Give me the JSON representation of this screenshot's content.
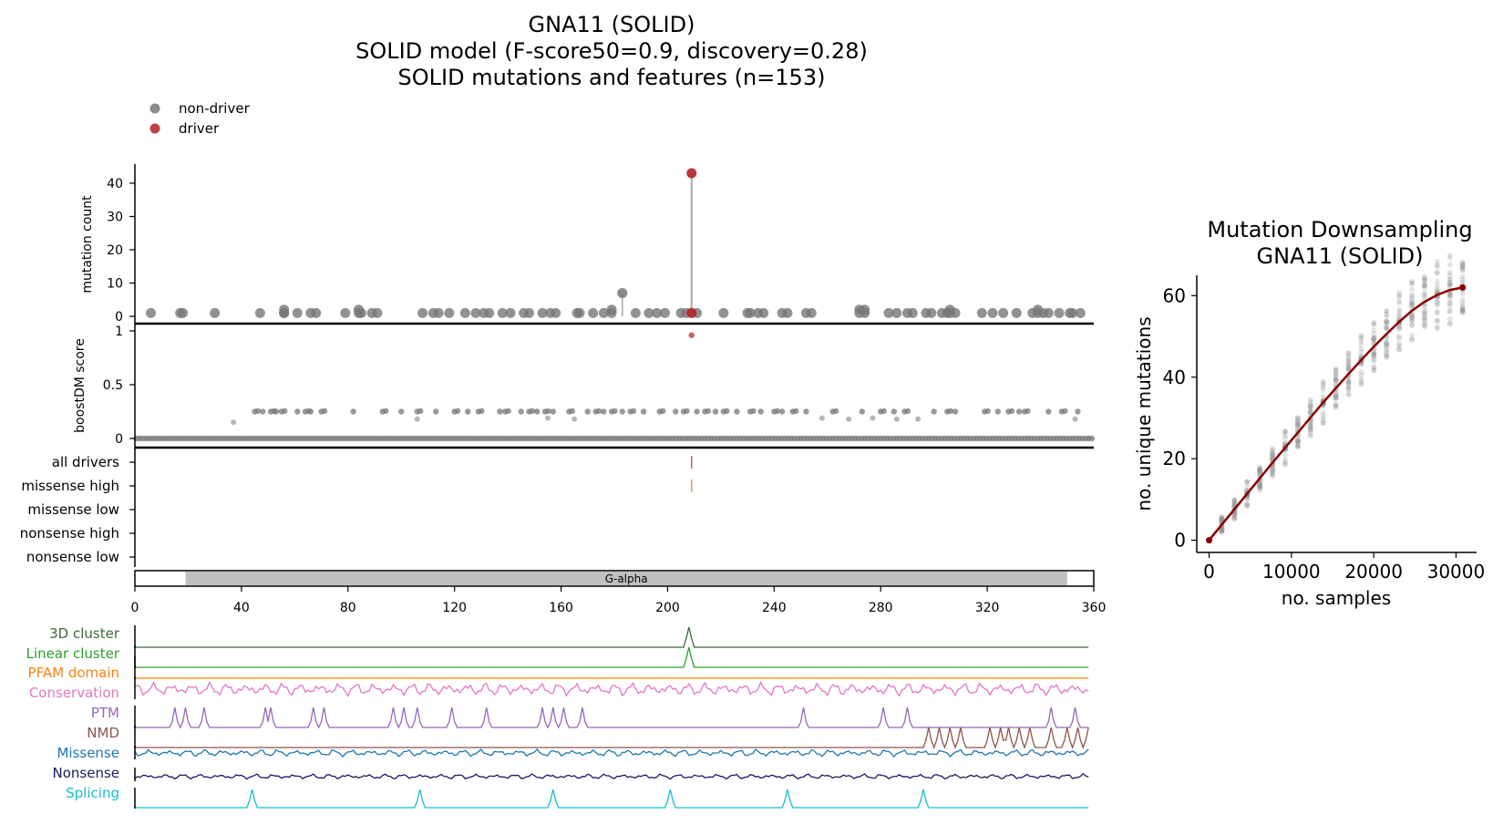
{
  "title": {
    "line1": "GNA11 (SOLID)",
    "line2": "SOLID model (F-score50=0.9, discovery=0.28)",
    "line3": "SOLID mutations and features (n=153)"
  },
  "legend": {
    "placement": "top-left",
    "items": [
      {
        "label": "non-driver",
        "color": "#777777"
      },
      {
        "label": "driver",
        "color": "#b22222"
      }
    ]
  },
  "colors": {
    "nondriver": "#777777",
    "driver": "#b22222",
    "stem": "#a8a8a8",
    "domain_fill": "#c0c0c0"
  },
  "chart_data": [
    {
      "type": "scatter",
      "panel": "mutation-count",
      "ylabel": "mutation count",
      "ylim": [
        0,
        45
      ],
      "yticks": [
        "0",
        "10",
        "20",
        "30",
        "40"
      ],
      "xlim": [
        0,
        360
      ],
      "nondriver_positions_count1": [
        6,
        17,
        18,
        30,
        47,
        56,
        61,
        66,
        68,
        79,
        85,
        89,
        91,
        108,
        112,
        114,
        118,
        124,
        128,
        131,
        133,
        138,
        141,
        146,
        148,
        153,
        156,
        158,
        166,
        167,
        172,
        176,
        188,
        193,
        196,
        199,
        205,
        207,
        211,
        221,
        230,
        231,
        234,
        236,
        243,
        245,
        252,
        254,
        283,
        286,
        290,
        292,
        297,
        299,
        303,
        305,
        308,
        318,
        322,
        326,
        331,
        337,
        341,
        343,
        347,
        351,
        352,
        355
      ],
      "nondriver_positions_count2": [
        56,
        84,
        179,
        272,
        274,
        306,
        339
      ],
      "nondriver_stems": [
        {
          "position": 183,
          "count": 7
        }
      ],
      "driver_points": [
        {
          "position": 209,
          "count": 43
        },
        {
          "position": 209,
          "count": 1
        }
      ]
    },
    {
      "type": "scatter",
      "panel": "boostdm-score",
      "ylabel": "boostDM score",
      "ylim": [
        -0.02,
        1.05
      ],
      "yticks": [
        "0",
        "0.5",
        "1"
      ],
      "driver_score": {
        "position": 209,
        "score": 0.96
      },
      "band_points": [
        45,
        48,
        51,
        53,
        55,
        61,
        64,
        66,
        70,
        82,
        93,
        100,
        106,
        113,
        120,
        125,
        129,
        137,
        139,
        145,
        148,
        151,
        154,
        157,
        163,
        170,
        173,
        176,
        179,
        183,
        186,
        191,
        197,
        203,
        206,
        211,
        214,
        218,
        221,
        226,
        231,
        235,
        240,
        243,
        247,
        252,
        262,
        273,
        280,
        285,
        289,
        300,
        305,
        308,
        319,
        324,
        328,
        332,
        334,
        343,
        348,
        354
      ],
      "mid_points": [
        {
          "position": 37,
          "score": 0.15
        },
        {
          "position": 106,
          "score": 0.18
        },
        {
          "position": 155,
          "score": 0.19
        },
        {
          "position": 165,
          "score": 0.18
        },
        {
          "position": 258,
          "score": 0.19
        },
        {
          "position": 268,
          "score": 0.18
        },
        {
          "position": 277,
          "score": 0.19
        },
        {
          "position": 286,
          "score": 0.18
        },
        {
          "position": 294,
          "score": 0.18
        },
        {
          "position": 353,
          "score": 0.18
        }
      ]
    },
    {
      "type": "table",
      "panel": "driver-tracks",
      "rows": [
        "all drivers",
        "missense high",
        "missense low",
        "nonsense high",
        "nonsense low"
      ],
      "marks": [
        {
          "row": "all drivers",
          "position": 209,
          "color": "#c06070"
        },
        {
          "row": "missense high",
          "position": 209,
          "color": "#d4a060"
        }
      ]
    },
    {
      "type": "table",
      "panel": "domain-bar",
      "xlim": [
        0,
        360
      ],
      "xticks": [
        "0",
        "40",
        "80",
        "120",
        "160",
        "200",
        "240",
        "280",
        "320",
        "360"
      ],
      "domains": [
        {
          "label": "G-alpha",
          "start": 19,
          "end": 350
        }
      ]
    },
    {
      "type": "line",
      "panel": "feature-tracks",
      "tracks": [
        {
          "name": "3D cluster",
          "color": "#3b6b3b"
        },
        {
          "name": "Linear cluster",
          "color": "#2ca02c"
        },
        {
          "name": "PFAM domain",
          "color": "#ff7f0e"
        },
        {
          "name": "Conservation",
          "color": "#e377c2"
        },
        {
          "name": "PTM",
          "color": "#9467bd"
        },
        {
          "name": "NMD",
          "color": "#8c564b"
        },
        {
          "name": "Missense",
          "color": "#1f77b4"
        },
        {
          "name": "Nonsense",
          "color": "#1a1a5e"
        },
        {
          "name": "Splicing",
          "color": "#17becf"
        }
      ],
      "ptm_peaks": [
        15,
        19,
        26,
        49,
        51,
        67,
        71,
        97,
        101,
        106,
        119,
        132,
        153,
        157,
        161,
        168,
        251,
        281,
        290,
        344,
        353
      ],
      "nmd_peaks": [
        298,
        302,
        306,
        310,
        321,
        325,
        328,
        332,
        336,
        344,
        350,
        354,
        358
      ],
      "splicing_peaks": [
        44,
        107,
        157,
        201,
        245,
        296
      ],
      "cluster3d_peak": 208,
      "linear_peak": 208
    },
    {
      "type": "scatter",
      "panel": "downsampling",
      "title_line1": "Mutation Downsampling",
      "title_line2": "GNA11 (SOLID)",
      "xlabel": "no. samples",
      "ylabel": "no. unique mutations",
      "xlim": [
        -1500,
        32500
      ],
      "ylim": [
        -3,
        65
      ],
      "xticks": [
        "0",
        "10000",
        "20000",
        "30000"
      ],
      "yticks": [
        "0",
        "20",
        "40",
        "60"
      ],
      "x": [
        0,
        1540,
        3080,
        4620,
        6160,
        7700,
        9240,
        10780,
        12320,
        13860,
        15400,
        16940,
        18480,
        20020,
        21560,
        23100,
        24640,
        26180,
        27720,
        29260,
        30800
      ],
      "y": [
        0,
        3.8,
        7.6,
        11.4,
        15.2,
        19.0,
        22.7,
        26.4,
        30.1,
        33.8,
        37.3,
        40.8,
        44.2,
        47.5,
        50.6,
        53.6,
        56.3,
        58.5,
        60.2,
        61.4,
        62
      ]
    }
  ]
}
